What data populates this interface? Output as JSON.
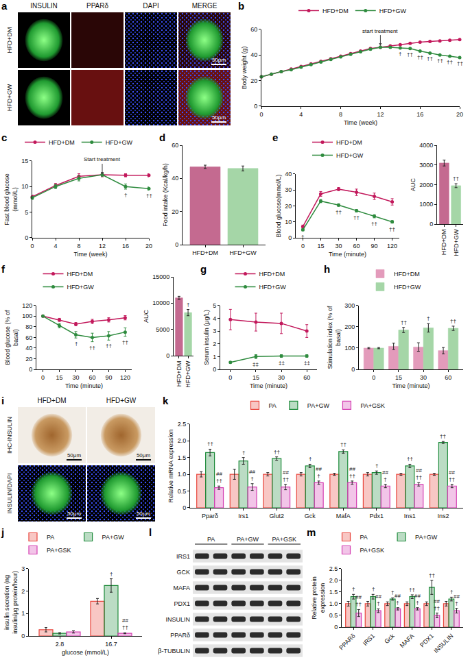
{
  "chart_data": [
    {
      "panel": "b",
      "type": "line",
      "x": [
        0,
        1,
        2,
        3,
        4,
        5,
        6,
        7,
        8,
        9,
        10,
        11,
        12,
        13,
        14,
        15,
        16,
        17,
        18,
        19,
        20
      ],
      "xlim": [
        0,
        20
      ],
      "xticks": [
        0,
        4,
        8,
        12,
        16,
        20
      ],
      "ylim": [
        0,
        60
      ],
      "yticks": [
        0,
        20,
        40,
        60
      ],
      "x_label": "Time (week)",
      "y_label": "Body weight (g)",
      "legend": "top",
      "series": [
        {
          "name": "HFD+DM",
          "color": "#c2185b",
          "marker": "circle",
          "values": [
            23,
            25,
            27,
            29,
            31,
            33,
            35,
            37,
            39,
            41,
            43,
            45,
            46,
            47,
            48,
            49,
            50,
            50.5,
            51,
            51.5,
            52
          ]
        },
        {
          "name": "HFD+GW",
          "color": "#2e8b3e",
          "marker": "circle",
          "values": [
            23,
            25,
            27,
            28.5,
            30.5,
            32.5,
            34.5,
            36.5,
            38.5,
            40.5,
            42.5,
            44.5,
            46,
            46,
            45.5,
            45,
            43,
            41.5,
            40,
            39,
            38
          ],
          "marks": [
            null,
            null,
            null,
            null,
            null,
            null,
            null,
            null,
            null,
            null,
            null,
            null,
            null,
            null,
            "†",
            "††",
            "††",
            "††",
            "††",
            "††",
            "††"
          ]
        }
      ],
      "annotations": [
        {
          "x": 12,
          "y": 47,
          "text": "start treatment"
        }
      ]
    },
    {
      "panel": "c",
      "type": "line",
      "x": [
        0,
        4,
        8,
        12,
        16,
        20
      ],
      "xlim": [
        0,
        20
      ],
      "xticks": [
        0,
        4,
        8,
        12,
        16,
        20
      ],
      "ylim": [
        0,
        15
      ],
      "yticks": [
        0,
        5,
        10,
        15
      ],
      "x_label": "Time (week)",
      "y_label": "Fast blood glucose (mmol/L)",
      "legend": "top",
      "series": [
        {
          "name": "HFD+DM",
          "color": "#c2185b",
          "marker": "circle",
          "values": [
            8,
            10.2,
            12,
            12.3,
            12.2,
            12.2
          ],
          "errors": [
            0.3,
            0.4,
            0.5,
            0.4,
            0.3,
            0.3
          ]
        },
        {
          "name": "HFD+GW",
          "color": "#2e8b3e",
          "marker": "circle",
          "values": [
            7.8,
            10,
            11.6,
            12.3,
            10,
            9.6
          ],
          "errors": [
            0.3,
            0.4,
            0.5,
            0.3,
            0.5,
            0.3
          ],
          "marks": [
            null,
            null,
            null,
            null,
            "†",
            "††"
          ]
        }
      ],
      "annotations": [
        {
          "x": 12,
          "y": 12.3,
          "text": "Start treatment"
        }
      ]
    },
    {
      "panel": "d",
      "type": "bar",
      "categories": [
        "HFD+DM",
        "HFD+GW"
      ],
      "values": [
        47,
        46
      ],
      "errors": [
        1,
        1.5
      ],
      "colors": [
        "#c46a90",
        "#a5d6a7"
      ],
      "ylim": [
        0,
        60
      ],
      "yticks": [
        0,
        20,
        40,
        60
      ],
      "y_label": "Food intake (Kcal/kg/h)"
    },
    {
      "panel": "e",
      "type": "line",
      "categories": [
        "0",
        "15",
        "30",
        "60",
        "90",
        "120"
      ],
      "ylim": [
        0,
        40
      ],
      "yticks": [
        0,
        10,
        20,
        30,
        40
      ],
      "x_label": "Time (minute)",
      "y_label": "Blood glucose(mmol/L)",
      "legend": "top",
      "series": [
        {
          "name": "HFD+DM",
          "color": "#c2185b",
          "marker": "circle",
          "values": [
            7,
            27.5,
            30.5,
            28.5,
            26,
            22.5
          ],
          "errors": [
            1,
            1.5,
            1,
            2,
            2,
            2
          ]
        },
        {
          "name": "HFD+GW",
          "color": "#2e8b3e",
          "marker": "circle",
          "values": [
            5,
            23,
            20.5,
            17,
            13.5,
            10
          ],
          "errors": [
            0.6,
            1,
            0.8,
            0.8,
            1,
            0.8
          ],
          "marks": [
            "†",
            null,
            "††",
            "††",
            "††",
            "††"
          ]
        }
      ]
    },
    {
      "type": "bar",
      "categories": [
        "HFD+DM",
        "HFD+GW"
      ],
      "values": [
        3100,
        1950
      ],
      "errors": [
        150,
        100
      ],
      "colors": [
        "#c46a90",
        "#a5d6a7"
      ],
      "ylim": [
        0,
        4000
      ],
      "yticks": [
        0,
        1000,
        2000,
        3000,
        4000
      ],
      "y_label": "AUC",
      "marks": [
        null,
        "††"
      ]
    },
    {
      "panel": "f",
      "type": "line",
      "categories": [
        "0",
        "15",
        "30",
        "60",
        "90",
        "120"
      ],
      "ylim": [
        0,
        120
      ],
      "yticks": [
        0,
        20,
        40,
        60,
        80,
        100,
        120
      ],
      "x_label": "Time (minute)",
      "y_label": "Blood glucose (% of basal)",
      "legend": "top",
      "series": [
        {
          "name": "HFD+DM",
          "color": "#c2185b",
          "marker": "circle",
          "values": [
            100,
            93,
            85,
            90,
            93,
            97
          ],
          "errors": [
            0,
            3,
            3,
            4,
            4,
            4
          ]
        },
        {
          "name": "HFD+GW",
          "color": "#2e8b3e",
          "marker": "circle",
          "values": [
            100,
            82,
            65,
            60,
            63,
            70
          ],
          "errors": [
            0,
            4,
            6,
            8,
            8,
            8
          ],
          "marks": [
            null,
            null,
            "†",
            "††",
            "††",
            "††"
          ]
        }
      ]
    },
    {
      "type": "bar",
      "categories": [
        "HFD+DM",
        "HFD+GW"
      ],
      "values": [
        11000,
        8200
      ],
      "errors": [
        300,
        600
      ],
      "colors": [
        "#c46a90",
        "#a5d6a7"
      ],
      "ylim": [
        0,
        15000
      ],
      "yticks": [
        0,
        5000,
        10000,
        15000
      ],
      "y_label": "AUC",
      "marks": [
        null,
        "†"
      ]
    },
    {
      "panel": "g",
      "type": "line",
      "categories": [
        "0",
        "15",
        "30",
        "60"
      ],
      "ylim": [
        0,
        5
      ],
      "yticks": [
        0,
        1,
        2,
        3,
        4,
        5
      ],
      "x_label": "Time (minute)",
      "y_label": "Serum insulin (μg/L)",
      "legend": "top",
      "series": [
        {
          "name": "HFD+DM",
          "color": "#c2185b",
          "marker": "circle",
          "values": [
            3.9,
            3.7,
            3.6,
            3.0
          ],
          "errors": [
            0.8,
            0.7,
            0.8,
            0.5
          ]
        },
        {
          "name": "HFD+GW",
          "color": "#2e8b3e",
          "marker": "circle",
          "values": [
            0.55,
            1.0,
            1.05,
            1.05
          ],
          "errors": [
            0.05,
            0.15,
            0.1,
            0.1
          ],
          "marks": [
            null,
            "‡‡",
            "‡‡",
            "‡‡"
          ]
        }
      ]
    },
    {
      "panel": "h",
      "type": "bar",
      "categories": [
        "0",
        "15",
        "30",
        "60"
      ],
      "ylim": [
        0,
        300
      ],
      "yticks": [
        0,
        100,
        200,
        300
      ],
      "x_label": "Time (minute)",
      "y_label": "Stimulation index (% of basal)",
      "legend": "top",
      "series": [
        {
          "name": "HFD+DM",
          "color": "#e39bbb",
          "values": [
            100,
            108,
            105,
            88
          ],
          "errors": [
            3,
            15,
            20,
            15
          ]
        },
        {
          "name": "HFD+GW",
          "color": "#a5d6a7",
          "values": [
            100,
            185,
            195,
            193
          ],
          "errors": [
            3,
            12,
            20,
            10
          ],
          "marks": [
            null,
            "††",
            "†",
            "††"
          ]
        }
      ]
    },
    {
      "panel": "k",
      "type": "bar",
      "categories": [
        "Pparδ",
        "Irs1",
        "Glut2",
        "Gck",
        "MafA",
        "Pdx1",
        "Ins1",
        "Ins2"
      ],
      "ylim": [
        0,
        2.5
      ],
      "yticks": [
        0,
        0.5,
        {
          "value": 1,
          "label": "1.0"
        },
        1.5,
        {
          "value": 2,
          "label": "2.0"
        },
        2.5
      ],
      "y_label": "Relative mRNA expression",
      "legend": "top",
      "series": [
        {
          "name": "PA",
          "color": "#e8453c",
          "values": [
            1,
            1,
            1,
            1,
            1,
            1,
            1,
            1
          ],
          "errors": [
            0.08,
            0.15,
            0.05,
            0.05,
            0.03,
            0.05,
            0.03,
            0.03
          ]
        },
        {
          "name": "PA+GW",
          "color": "#1d8a3a",
          "values": [
            1.65,
            1.4,
            1.47,
            1.25,
            1.68,
            1.05,
            1.25,
            1.95
          ],
          "errors": [
            0.1,
            0.1,
            0.05,
            0.05,
            0.05,
            0.05,
            0.05,
            0.03
          ],
          "marks": [
            "††",
            "†",
            "††",
            "†",
            "††",
            "†",
            "††",
            "††"
          ]
        },
        {
          "name": "PA+GSK",
          "color": "#d43fb2",
          "values": [
            0.6,
            0.62,
            0.62,
            0.75,
            0.75,
            0.65,
            0.7,
            0.65
          ],
          "errors": [
            0.05,
            0.1,
            0.08,
            0.05,
            0.05,
            0.05,
            0.05,
            0.05
          ],
          "marks": [
            [
              "##",
              "††"
            ],
            [
              "##",
              "†"
            ],
            [
              "##",
              "††"
            ],
            [
              "##",
              "†"
            ],
            [
              "##",
              "††"
            ],
            [
              "##",
              "†"
            ],
            [
              "##",
              "††"
            ],
            [
              "##",
              "††"
            ]
          ]
        }
      ]
    },
    {
      "panel": "j",
      "type": "bar",
      "categories": [
        "2.8",
        "16.7"
      ],
      "ylim": [
        0,
        3
      ],
      "yticks": [
        0,
        1,
        2,
        3
      ],
      "x_label": "glucose (mmol/L)",
      "y_label": "insulin secretion (ng insulin/μg protein/hour)",
      "legend": "top",
      "series": [
        {
          "name": "PA",
          "color": "#e8453c",
          "values": [
            0.28,
            1.55
          ],
          "errors": [
            0.1,
            0.12
          ]
        },
        {
          "name": "PA+GW",
          "color": "#1d8a3a",
          "values": [
            0.12,
            2.25
          ],
          "errors": [
            0.03,
            0.3
          ],
          "marks": [
            null,
            "†"
          ]
        },
        {
          "name": "PA+GSK",
          "color": "#d43fb2",
          "values": [
            0.18,
            0.12
          ],
          "errors": [
            0.05,
            0.02
          ],
          "marks": [
            null,
            [
              "##",
              "††"
            ]
          ]
        }
      ]
    },
    {
      "panel": "m",
      "type": "bar",
      "categories": [
        "PPARδ",
        "IRS1",
        "Gck",
        "MAFA",
        "PDX1",
        "INSULIN"
      ],
      "ylim": [
        0,
        2.5
      ],
      "yticks": [
        0,
        0.5,
        {
          "value": 1,
          "label": "1.0"
        },
        1.5,
        {
          "value": 2,
          "label": "2.0"
        },
        2.5
      ],
      "y_label": "Relative protein expression",
      "legend": "top",
      "series": [
        {
          "name": "PA",
          "color": "#e8453c",
          "values": [
            1,
            1,
            1,
            1,
            1,
            1
          ],
          "errors": [
            0.1,
            0.1,
            0.08,
            0.08,
            0.08,
            0.1
          ]
        },
        {
          "name": "PA+GW",
          "color": "#1d8a3a",
          "values": [
            1.3,
            1.3,
            1.2,
            1.3,
            1.7,
            1.2
          ],
          "errors": [
            0.1,
            0.1,
            0.05,
            0.08,
            0.3,
            0.08
          ],
          "marks": [
            "†",
            "†",
            "†",
            "††",
            "††",
            "†"
          ]
        },
        {
          "name": "PA+GSK",
          "color": "#d43fb2",
          "values": [
            0.6,
            0.7,
            0.78,
            0.78,
            0.5,
            0.7
          ],
          "errors": [
            0.15,
            0.08,
            0.05,
            0.05,
            0.1,
            0.1
          ],
          "marks": [
            [
              "##",
              "††"
            ],
            [
              "##",
              "†"
            ],
            [
              "##",
              "†"
            ],
            [
              "##",
              "†"
            ],
            [
              "##",
              "††"
            ],
            [
              "##",
              "†"
            ]
          ]
        }
      ]
    }
  ],
  "image_panels": [
    {
      "panel": "a",
      "columns": [
        "INSULIN",
        "PPARδ",
        "DAPI",
        "MERGE"
      ],
      "rows": [
        "HFD+DM",
        "HFD+GW"
      ],
      "scale_bar": "50μm"
    },
    {
      "panel": "i",
      "columns": [
        "HFD+DM",
        "HFD+GW"
      ],
      "rows": [
        "IHC-INSULIN",
        "INSULIN/DAPI"
      ],
      "scale_bar": "50μm"
    },
    {
      "panel": "l",
      "groups": [
        "PA",
        "PA+GW",
        "PA+GSK"
      ],
      "rows": [
        "IRS1",
        "GCK",
        "MAFA",
        "PDX1",
        "INSULIN",
        "PPARδ",
        "β-TUBULIN"
      ]
    }
  ]
}
